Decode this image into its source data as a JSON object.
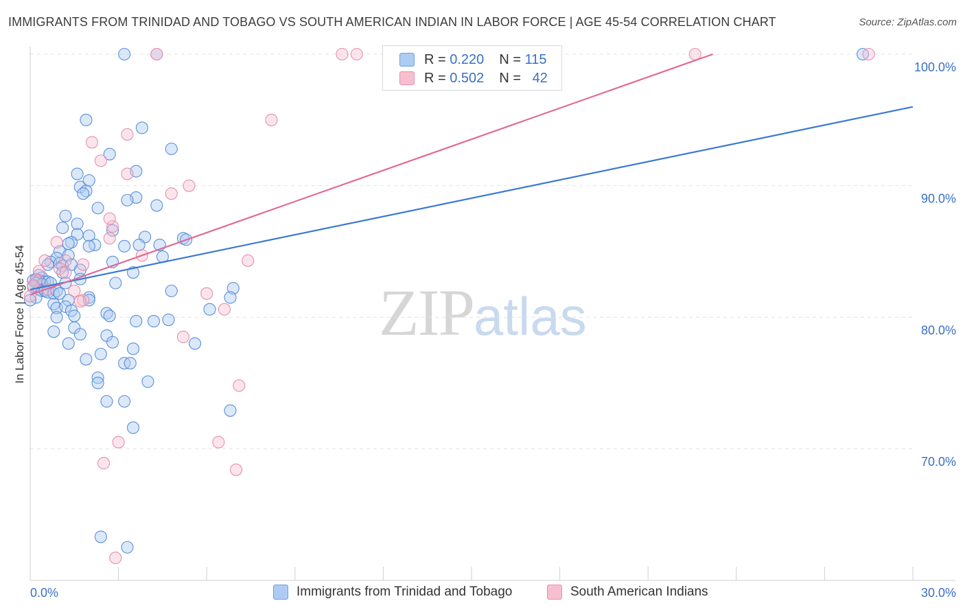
{
  "title": "IMMIGRANTS FROM TRINIDAD AND TOBAGO VS SOUTH AMERICAN INDIAN IN LABOR FORCE | AGE 45-54 CORRELATION CHART",
  "source": "Source: ZipAtlas.com",
  "watermark": {
    "zip": "ZIP",
    "atlas": "atlas"
  },
  "colors": {
    "blue": "#3a78d4",
    "blue_fill": "#aecbf2",
    "pink": "#e06a94",
    "pink_fill": "#f6bfd0",
    "axis_label": "#3a6fc4",
    "grid": "#e3e3e3"
  },
  "legend_top": {
    "rows": [
      {
        "r_label": "R =",
        "r_value": "0.220",
        "n_label": "N =",
        "n_value": "115"
      },
      {
        "r_label": "R =",
        "r_value": "0.502",
        "n_label": "N =",
        "n_value": "42"
      }
    ]
  },
  "chart_data": {
    "type": "scatter",
    "title": "IMMIGRANTS FROM TRINIDAD AND TOBAGO VS SOUTH AMERICAN INDIAN IN LABOR FORCE | AGE 45-54 CORRELATION CHART",
    "xlabel": "",
    "ylabel": "In Labor Force | Age 45-54",
    "xlim": [
      0,
      30
    ],
    "ylim": [
      60,
      100
    ],
    "x_tick_labels": [
      "0.0%",
      "30.0%"
    ],
    "y_ticks": [
      70,
      80,
      90,
      100
    ],
    "y_tick_labels": [
      "70.0%",
      "80.0%",
      "90.0%",
      "100.0%"
    ],
    "grid": true,
    "legend_position": "bottom",
    "series": [
      {
        "name": "Immigrants from Trinidad and Tobago",
        "color": "#3a78d4",
        "trend": {
          "x": [
            0,
            30
          ],
          "y": [
            82.1,
            96.0
          ]
        },
        "points": [
          [
            3.2,
            100
          ],
          [
            4.3,
            100
          ],
          [
            28.3,
            100
          ],
          [
            1.9,
            95
          ],
          [
            3.8,
            94.4
          ],
          [
            4.8,
            92.8
          ],
          [
            2.7,
            92.4
          ],
          [
            3.6,
            91.1
          ],
          [
            1.6,
            90.9
          ],
          [
            2.0,
            90.4
          ],
          [
            1.7,
            89.9
          ],
          [
            1.9,
            89.6
          ],
          [
            1.8,
            89.4
          ],
          [
            3.6,
            89.1
          ],
          [
            3.3,
            88.9
          ],
          [
            4.3,
            88.5
          ],
          [
            2.3,
            88.3
          ],
          [
            1.2,
            87.7
          ],
          [
            1.6,
            87.1
          ],
          [
            1.1,
            86.8
          ],
          [
            2.8,
            86.6
          ],
          [
            1.6,
            86.3
          ],
          [
            2.0,
            86.2
          ],
          [
            3.9,
            86.1
          ],
          [
            5.2,
            86.0
          ],
          [
            5.3,
            85.9
          ],
          [
            1.4,
            85.7
          ],
          [
            1.3,
            85.6
          ],
          [
            2.2,
            85.5
          ],
          [
            2.0,
            85.4
          ],
          [
            4.4,
            85.5
          ],
          [
            3.2,
            85.4
          ],
          [
            3.7,
            85.5
          ],
          [
            1.0,
            85.0
          ],
          [
            1.3,
            84.7
          ],
          [
            4.5,
            84.6
          ],
          [
            0.9,
            84.5
          ],
          [
            0.7,
            84.2
          ],
          [
            1.0,
            84.1
          ],
          [
            0.6,
            84.0
          ],
          [
            1.1,
            83.9
          ],
          [
            1.4,
            84.0
          ],
          [
            2.8,
            84.2
          ],
          [
            1.7,
            83.6
          ],
          [
            3.5,
            83.4
          ],
          [
            1.1,
            83.4
          ],
          [
            0.3,
            83.2
          ],
          [
            0.4,
            83.0
          ],
          [
            0.2,
            82.9
          ],
          [
            0.1,
            82.8
          ],
          [
            0.3,
            82.8
          ],
          [
            0.5,
            82.7
          ],
          [
            0.6,
            82.7
          ],
          [
            0.2,
            82.6
          ],
          [
            0.4,
            82.5
          ],
          [
            0.7,
            82.6
          ],
          [
            1.2,
            82.6
          ],
          [
            1.7,
            82.9
          ],
          [
            2.9,
            82.6
          ],
          [
            0.1,
            82.3
          ],
          [
            0.3,
            82.1
          ],
          [
            0.4,
            82.0
          ],
          [
            0.5,
            82.0
          ],
          [
            0.6,
            81.9
          ],
          [
            0.8,
            81.8
          ],
          [
            0.9,
            82.0
          ],
          [
            1.0,
            81.8
          ],
          [
            0.2,
            81.5
          ],
          [
            0.0,
            81.3
          ],
          [
            4.8,
            82.0
          ],
          [
            6.9,
            82.2
          ],
          [
            6.8,
            81.5
          ],
          [
            1.3,
            81.3
          ],
          [
            2.0,
            81.5
          ],
          [
            0.8,
            81.0
          ],
          [
            2.0,
            81.3
          ],
          [
            0.9,
            80.7
          ],
          [
            1.2,
            80.8
          ],
          [
            1.4,
            80.5
          ],
          [
            2.6,
            80.3
          ],
          [
            2.7,
            80.1
          ],
          [
            6.1,
            80.6
          ],
          [
            1.5,
            80.1
          ],
          [
            0.9,
            80.0
          ],
          [
            3.6,
            79.7
          ],
          [
            4.2,
            79.7
          ],
          [
            4.7,
            79.8
          ],
          [
            1.5,
            79.2
          ],
          [
            0.8,
            78.9
          ],
          [
            1.7,
            78.7
          ],
          [
            2.6,
            78.6
          ],
          [
            2.8,
            78.1
          ],
          [
            1.3,
            78.0
          ],
          [
            3.5,
            77.6
          ],
          [
            5.6,
            78.0
          ],
          [
            2.4,
            77.2
          ],
          [
            1.9,
            76.8
          ],
          [
            3.2,
            76.5
          ],
          [
            3.4,
            76.5
          ],
          [
            2.3,
            75.4
          ],
          [
            2.3,
            75.0
          ],
          [
            4.0,
            75.1
          ],
          [
            2.6,
            73.6
          ],
          [
            3.2,
            73.6
          ],
          [
            6.8,
            72.9
          ],
          [
            3.5,
            71.6
          ],
          [
            2.4,
            63.3
          ],
          [
            3.3,
            62.5
          ]
        ]
      },
      {
        "name": "South American Indians",
        "color": "#e06a94",
        "trend": {
          "x": [
            0,
            23.2
          ],
          "y": [
            81.7,
            100
          ]
        },
        "points": [
          [
            4.3,
            100
          ],
          [
            10.6,
            100
          ],
          [
            11.1,
            100
          ],
          [
            14.0,
            100
          ],
          [
            22.6,
            100
          ],
          [
            28.5,
            100
          ],
          [
            8.2,
            95
          ],
          [
            3.3,
            93.9
          ],
          [
            2.1,
            93.3
          ],
          [
            2.4,
            91.9
          ],
          [
            3.3,
            90.9
          ],
          [
            5.4,
            90.0
          ],
          [
            4.8,
            89.4
          ],
          [
            2.8,
            86.9
          ],
          [
            2.7,
            87.5
          ],
          [
            2.7,
            86.0
          ],
          [
            0.9,
            85.7
          ],
          [
            3.8,
            84.7
          ],
          [
            7.4,
            84.3
          ],
          [
            0.5,
            84.3
          ],
          [
            1.2,
            84.3
          ],
          [
            1.8,
            84.0
          ],
          [
            1.0,
            83.7
          ],
          [
            0.3,
            83.5
          ],
          [
            1.2,
            83.4
          ],
          [
            0.2,
            82.8
          ],
          [
            0.1,
            82.4
          ],
          [
            0.6,
            82.1
          ],
          [
            1.5,
            82.0
          ],
          [
            0.0,
            81.6
          ],
          [
            6.0,
            81.8
          ],
          [
            1.8,
            81.3
          ],
          [
            1.7,
            81.2
          ],
          [
            6.6,
            80.6
          ],
          [
            5.2,
            78.5
          ],
          [
            7.1,
            74.8
          ],
          [
            3.0,
            70.5
          ],
          [
            6.4,
            70.5
          ],
          [
            2.5,
            68.9
          ],
          [
            7.0,
            68.4
          ],
          [
            2.9,
            61.7
          ]
        ]
      }
    ]
  }
}
